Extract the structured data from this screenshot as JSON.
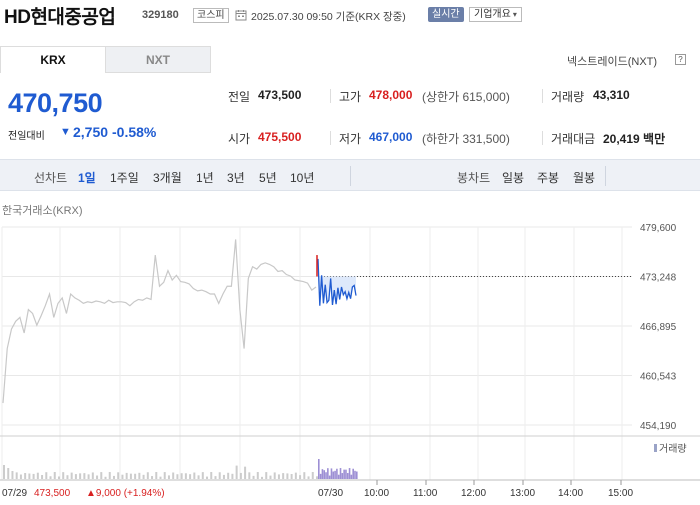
{
  "header": {
    "stock_name": "HD현대중공업",
    "stock_code": "329180",
    "market_badge": "코스피",
    "datetime": "2025.07.30 09:50 기준(KRX 장중)",
    "realtime_btn": "실시간",
    "company_btn": "기업개요"
  },
  "tabs": {
    "krx": "KRX",
    "nxt": "NXT",
    "nxt_link": "넥스트레이드(NXT)"
  },
  "price": {
    "current": "470,750",
    "change_label": "전일대비",
    "change_arrow": "▼",
    "change_value": "2,750",
    "change_percent": "-0.58%"
  },
  "info": {
    "prev_close_label": "전일",
    "prev_close": "473,500",
    "high_label": "고가",
    "high": "478,000",
    "upper_limit": "(상한가 615,000)",
    "volume_label": "거래량",
    "volume": "43,310",
    "open_label": "시가",
    "open": "475,500",
    "low_label": "저가",
    "low": "467,000",
    "lower_limit": "(하한가 331,500)",
    "amount_label": "거래대금",
    "amount": "20,419 백만"
  },
  "period_bar": {
    "line_label": "선차트",
    "line_items": [
      "1일",
      "1주일",
      "3개월",
      "1년",
      "3년",
      "5년",
      "10년"
    ],
    "selected": "1일",
    "candle_label": "봉차트",
    "candle_items": [
      "일봉",
      "주봉",
      "월봉"
    ]
  },
  "source_label": "한국거래소(KRX)",
  "colors": {
    "price_down": "#1f5bd1",
    "price_up": "#d81f1f",
    "grid": "#e8e8e8",
    "prev_line": "#7fa8e6",
    "prev_day_line": "#c8c8c8"
  },
  "chart_data": {
    "type": "line",
    "ylim": [
      454190,
      479600
    ],
    "y_ticks": [
      "479,600",
      "473,248",
      "466,895",
      "460,543",
      "454,190"
    ],
    "x_ticks": [
      "10:00",
      "11:00",
      "12:00",
      "13:00",
      "14:00",
      "15:00"
    ],
    "reference_value": 473248,
    "volume_label": "거래량",
    "series": [
      {
        "values": [
          457000,
          464000,
          466500,
          467500,
          468000,
          466000,
          469000,
          468500,
          467000,
          468200,
          469500,
          471000,
          468000,
          469800,
          470500,
          468500,
          471000,
          470500,
          470200,
          469800,
          470000,
          469900,
          470100,
          470000,
          469800,
          470200,
          469900,
          470000,
          470000,
          469900,
          469500,
          470000,
          470300,
          470200,
          470500,
          470300,
          476000,
          472000,
          472500,
          474000,
          472800,
          473400,
          472600,
          472500,
          472300,
          471700,
          471400,
          471500,
          471300,
          471000,
          471000,
          469800,
          471000,
          472000,
          472000,
          478000,
          469000,
          464000,
          473000,
          474500,
          474200,
          474800,
          475000,
          474800,
          474500,
          473900,
          474000,
          473500,
          473300,
          472800,
          472700,
          472600,
          472400,
          471500,
          471900
        ]
      },
      {
        "values": [
          475500,
          469500,
          473400,
          469800,
          472200,
          469900,
          470200,
          473000,
          469600,
          471500,
          469700,
          471800,
          470300,
          471900,
          470900,
          471300,
          470400,
          471200,
          470400,
          471900,
          472100,
          470800
        ]
      }
    ],
    "x_labels": {
      "prev_date": "07/29",
      "prev_close": "473,500",
      "prev_change": "▲9,000 (+1.94%)",
      "today_date": "07/30"
    }
  }
}
